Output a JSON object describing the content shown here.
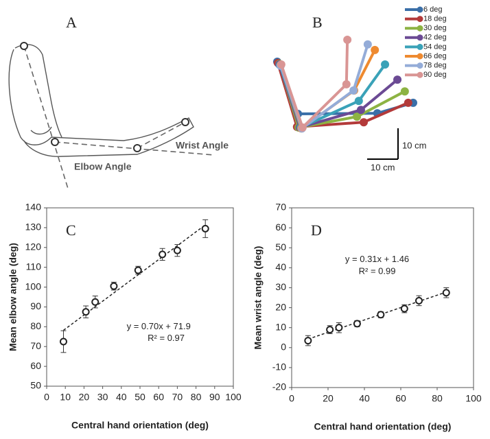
{
  "panel_a": {
    "label": "A",
    "annotations": [
      "Wrist Angle",
      "Elbow Angle"
    ]
  },
  "chart_data": [
    {
      "type": "line",
      "label": "B",
      "series": [
        {
          "name": "6 deg",
          "color": "#3a6fa8",
          "x": [
            0,
            6.7,
            32.4,
            44
          ],
          "y": [
            0,
            -16.9,
            -16.7,
            -13.3
          ]
        },
        {
          "name": "18 deg",
          "color": "#b33a3a",
          "x": [
            0.2,
            6.4,
            28,
            42.4
          ],
          "y": [
            -0.4,
            -21.1,
            -19.6,
            -13.3
          ]
        },
        {
          "name": "30 deg",
          "color": "#8db343",
          "x": [
            0.7,
            6.9,
            25.8,
            41.3
          ],
          "y": [
            -0.7,
            -21.3,
            -17.8,
            -9.6
          ]
        },
        {
          "name": "42 deg",
          "color": "#6b4a94",
          "x": [
            0.7,
            7.3,
            27.1,
            38.9
          ],
          "y": [
            -0.9,
            -21.3,
            -15.6,
            -5.8
          ]
        },
        {
          "name": "54 deg",
          "color": "#3aa2b8",
          "x": [
            0.9,
            7.6,
            26.4,
            34.9
          ],
          "y": [
            -1.1,
            -21.3,
            -12.7,
            -0.9
          ]
        },
        {
          "name": "66 deg",
          "color": "#ee8a30",
          "x": [
            1.1,
            7.8,
            24.9,
            31.6
          ],
          "y": [
            -1.1,
            -21.6,
            -9.3,
            3.8
          ]
        },
        {
          "name": "78 deg",
          "color": "#94acd8",
          "x": [
            1.1,
            8,
            24.7,
            29.3
          ],
          "y": [
            -1.3,
            -21.6,
            -9.3,
            5.6
          ]
        },
        {
          "name": "90 deg",
          "color": "#d99594",
          "x": [
            1.3,
            8.2,
            22.4,
            22.7
          ],
          "y": [
            -0.9,
            -21.3,
            -7.3,
            7.1
          ]
        }
      ],
      "scale_bars": [
        {
          "value": 10,
          "label": "10 cm"
        },
        {
          "value": 10,
          "label": "10 cm"
        }
      ]
    },
    {
      "type": "scatter",
      "label": "C",
      "xlabel": "Central hand orientation (deg)",
      "ylabel": "Mean elbow angle (deg)",
      "x": [
        9,
        21,
        26,
        36,
        49,
        62,
        70,
        85
      ],
      "values": [
        72.5,
        87.5,
        92.5,
        100.5,
        108.5,
        116.5,
        118.5,
        129.5
      ],
      "errors": [
        5.5,
        3,
        3,
        2,
        2,
        3,
        3,
        4.5
      ],
      "fit": {
        "slope": 0.7,
        "intercept": 71.9,
        "xrange": [
          9,
          85
        ]
      },
      "annotations": [
        "y = 0.70x + 71.9",
        "R² = 0.97"
      ],
      "xlim": [
        0,
        100
      ],
      "xticks": [
        0,
        10,
        20,
        30,
        40,
        50,
        60,
        70,
        80,
        90,
        100
      ],
      "ylim": [
        50,
        140
      ],
      "yticks": [
        50,
        60,
        70,
        80,
        90,
        100,
        110,
        120,
        130,
        140
      ]
    },
    {
      "type": "scatter",
      "label": "D",
      "xlabel": "Central hand orientation (deg)",
      "ylabel": "Mean wrist angle (deg)",
      "x": [
        9,
        21,
        26,
        36,
        49,
        62,
        70,
        85
      ],
      "values": [
        3.5,
        9,
        10,
        12,
        16.5,
        19.5,
        23.5,
        27.5
      ],
      "errors": [
        2.5,
        2,
        2.5,
        1.5,
        1.5,
        2,
        2.5,
        2.5
      ],
      "fit": {
        "slope": 0.31,
        "intercept": 1.46,
        "xrange": [
          9,
          85
        ]
      },
      "annotations": [
        "y = 0.31x + 1.46",
        "R² = 0.99"
      ],
      "xlim": [
        0,
        100
      ],
      "xticks": [
        0,
        20,
        40,
        60,
        80,
        100
      ],
      "ylim": [
        -20,
        70
      ],
      "yticks": [
        -20,
        -10,
        0,
        10,
        20,
        30,
        40,
        50,
        60,
        70
      ]
    }
  ]
}
